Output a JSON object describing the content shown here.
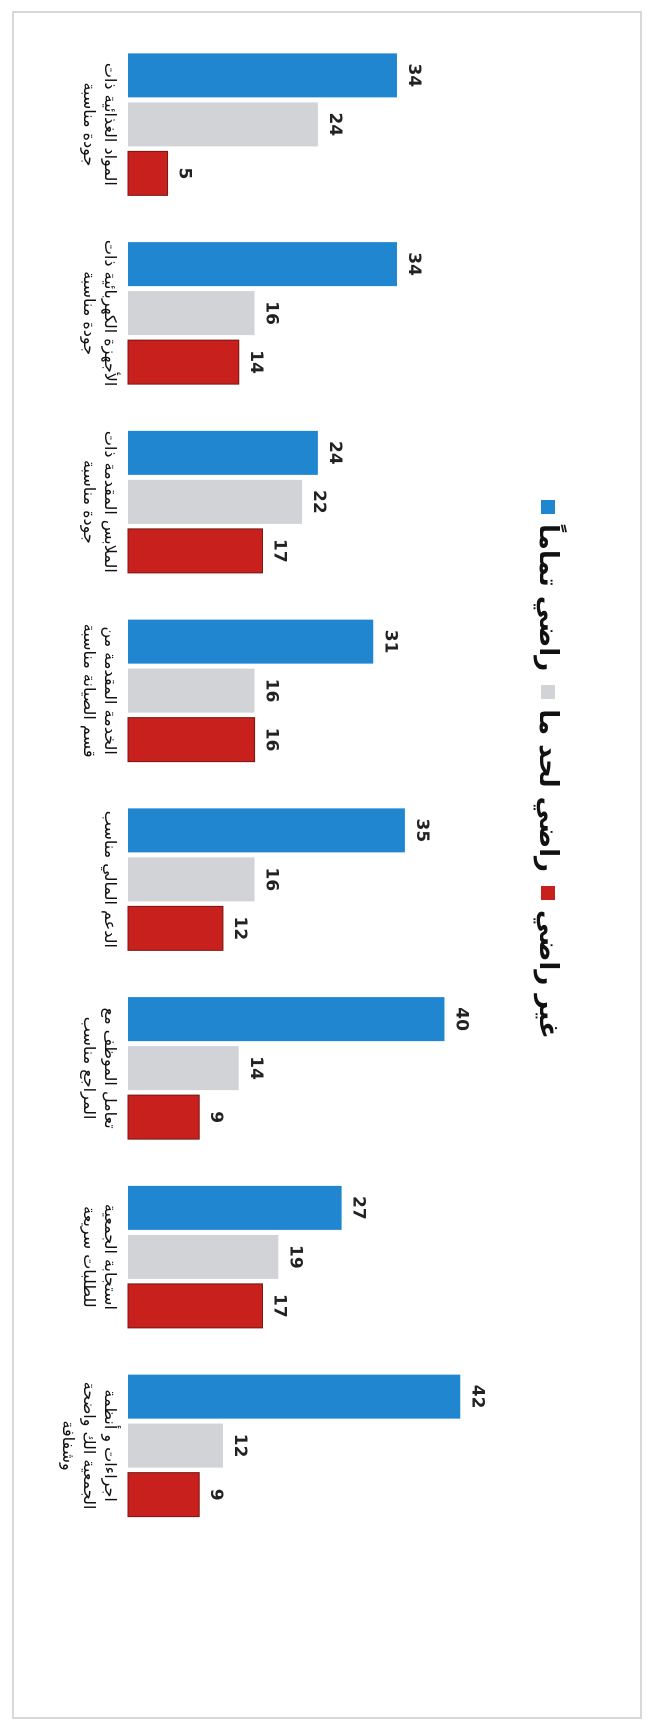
{
  "chart_data": {
    "type": "bar",
    "categories": [
      "المواد الغذائية ذات جودة مناسبة",
      "الأجهزة الكهربائية ذات جودة مناسبة",
      "الملابس المقدمة ذات جودة مناسبة",
      "الخدمة المقدمة من قسم الصيانة مناسبة",
      "الدعم المالي مناسب",
      "تعامل الموظف مع المراجع مناسب",
      "استجابة الجمعية للطلبات سريعة",
      "اجراءات و أنظمة الجمعية الك واضحة وشفافة"
    ],
    "series": [
      {
        "name": "راضي تماماً",
        "color": "#1f86cf",
        "values": [
          34,
          34,
          24,
          31,
          35,
          40,
          27,
          42
        ]
      },
      {
        "name": "راضي لحد ما",
        "color": "#d2d3d7",
        "values": [
          24,
          16,
          22,
          16,
          16,
          14,
          19,
          12
        ]
      },
      {
        "name": "غير راضي",
        "color": "#c8201c",
        "values": [
          5,
          14,
          17,
          16,
          12,
          9,
          17,
          9
        ]
      }
    ],
    "ylim": [
      0,
      45
    ]
  }
}
